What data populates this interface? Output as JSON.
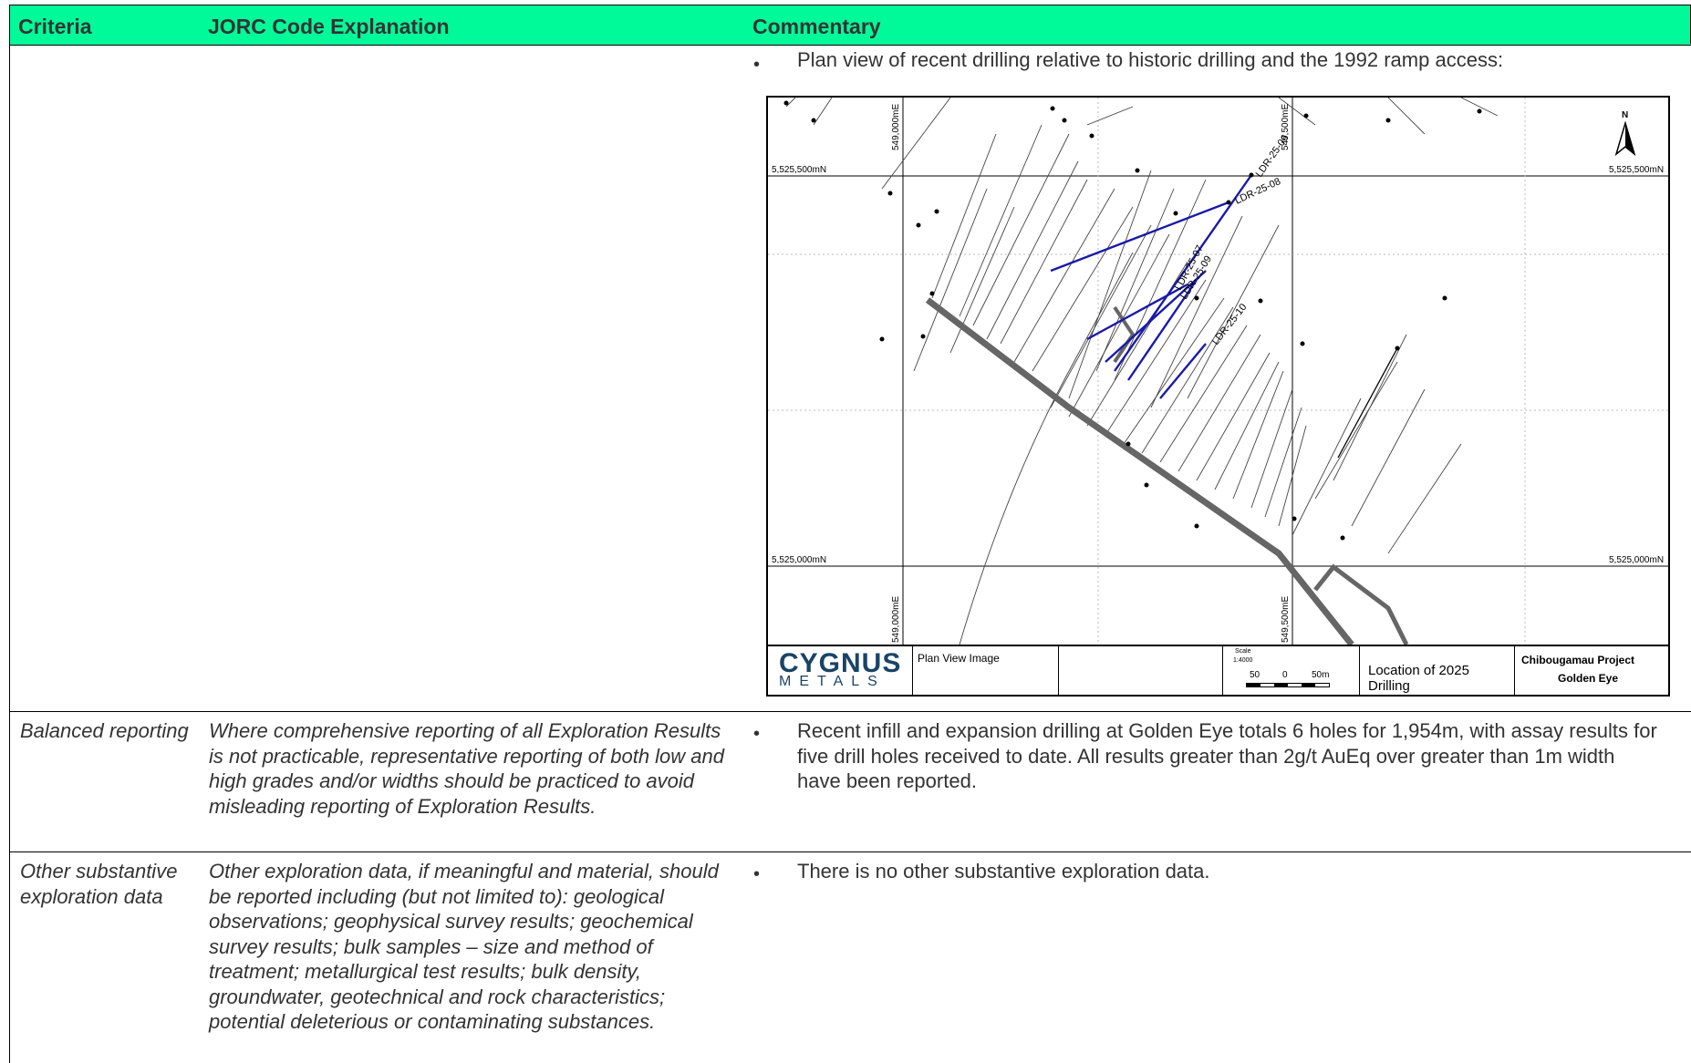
{
  "header": {
    "col1": "Criteria",
    "col2": "JORC Code Explanation",
    "col3": "Commentary"
  },
  "rows": [
    {
      "criteria": "",
      "explanation": "",
      "commentary": "Plan view of recent drilling relative to historic drilling and the 1992 ramp access:"
    },
    {
      "criteria": "Balanced reporting",
      "explanation": "Where comprehensive reporting of all Exploration Results is not practicable, representative reporting of both low and high grades and/or widths should be practiced to avoid misleading reporting of Exploration Results.",
      "commentary": "Recent infill and expansion drilling at Golden Eye totals 6 holes for 1,954m, with assay results for five drill holes received to date. All results greater than 2g/t AuEq over greater than 1m width have been reported."
    },
    {
      "criteria": "Other substantive exploration data",
      "explanation": "Other exploration data, if meaningful and material, should be reported including (but not limited to): geological observations; geophysical survey results; geochemical survey results; bulk samples – size and method of treatment; metallurgical test results; bulk density, groundwater, geotechnical and rock characteristics; potential deleterious or contaminating substances.",
      "commentary": "There is no other substantive exploration data."
    }
  ],
  "map": {
    "grid_labels": {
      "e1_top": "549,000mE",
      "e2_top": "549,500mE",
      "e1_bottom": "549,000mE",
      "e2_bottom": "549,500mE",
      "n_top_left": "5,525,500mN",
      "n_top_right": "5,525,500mN",
      "n_bottom_left": "5,525,000mN",
      "n_bottom_right": "5,525,000mN"
    },
    "north": "N",
    "holes": [
      "LDR-25-06",
      "LDR-25-08",
      "LDR-25-07",
      "LDR-25-09",
      "LDR-25-10"
    ],
    "title_block": {
      "logo_top": "CYGNUS",
      "logo_bottom": "METALS",
      "image_label": "Plan View Image",
      "scale_label": "Scale",
      "scale_value": "1:4000",
      "scale_ticks": [
        "50",
        "0",
        "50m"
      ],
      "location": "Location of 2025 Drilling",
      "project": "Chibougamau Project",
      "site": "Golden Eye"
    },
    "colors": {
      "new_holes": "#1a1aa8",
      "historic": "#555555",
      "ramp": "#666666"
    }
  }
}
